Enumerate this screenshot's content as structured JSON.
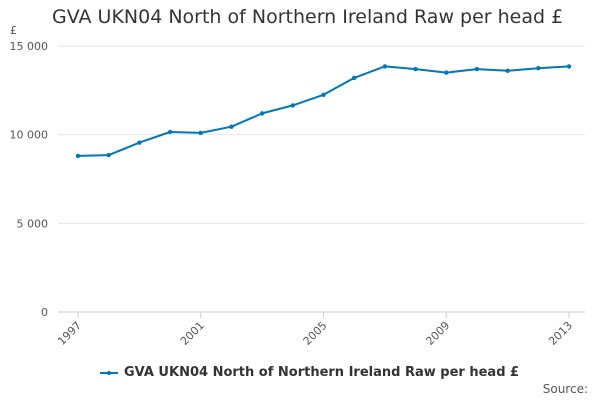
{
  "chart_data": {
    "type": "line",
    "title": "GVA UKN04 North of Northern Ireland Raw per head £",
    "ylabel": "£",
    "xlabel": "",
    "x": [
      1997,
      1998,
      1999,
      2000,
      2001,
      2002,
      2003,
      2004,
      2005,
      2006,
      2007,
      2008,
      2009,
      2010,
      2011,
      2012,
      2013
    ],
    "series": [
      {
        "name": "GVA UKN04 North of Northern Ireland Raw per head £",
        "values": [
          8800,
          8850,
          9550,
          10150,
          10100,
          10450,
          11200,
          11650,
          12250,
          13200,
          13850,
          13700,
          13500,
          13700,
          13600,
          13750,
          13850
        ],
        "color": "#0077b6"
      }
    ],
    "yticks": [
      0,
      5000,
      10000,
      15000
    ],
    "ytick_labels": [
      "0",
      "5 000",
      "10 000",
      "15 000"
    ],
    "xticks": [
      1997,
      2001,
      2005,
      2009,
      2013
    ],
    "xtick_labels": [
      "1997",
      "2001",
      "2005",
      "2009",
      "2013"
    ],
    "ylim": [
      0,
      15000
    ],
    "xlim": [
      1997,
      2013
    ],
    "grid": true,
    "legend": "bottom-center"
  },
  "footer": {
    "source": "Source:"
  }
}
